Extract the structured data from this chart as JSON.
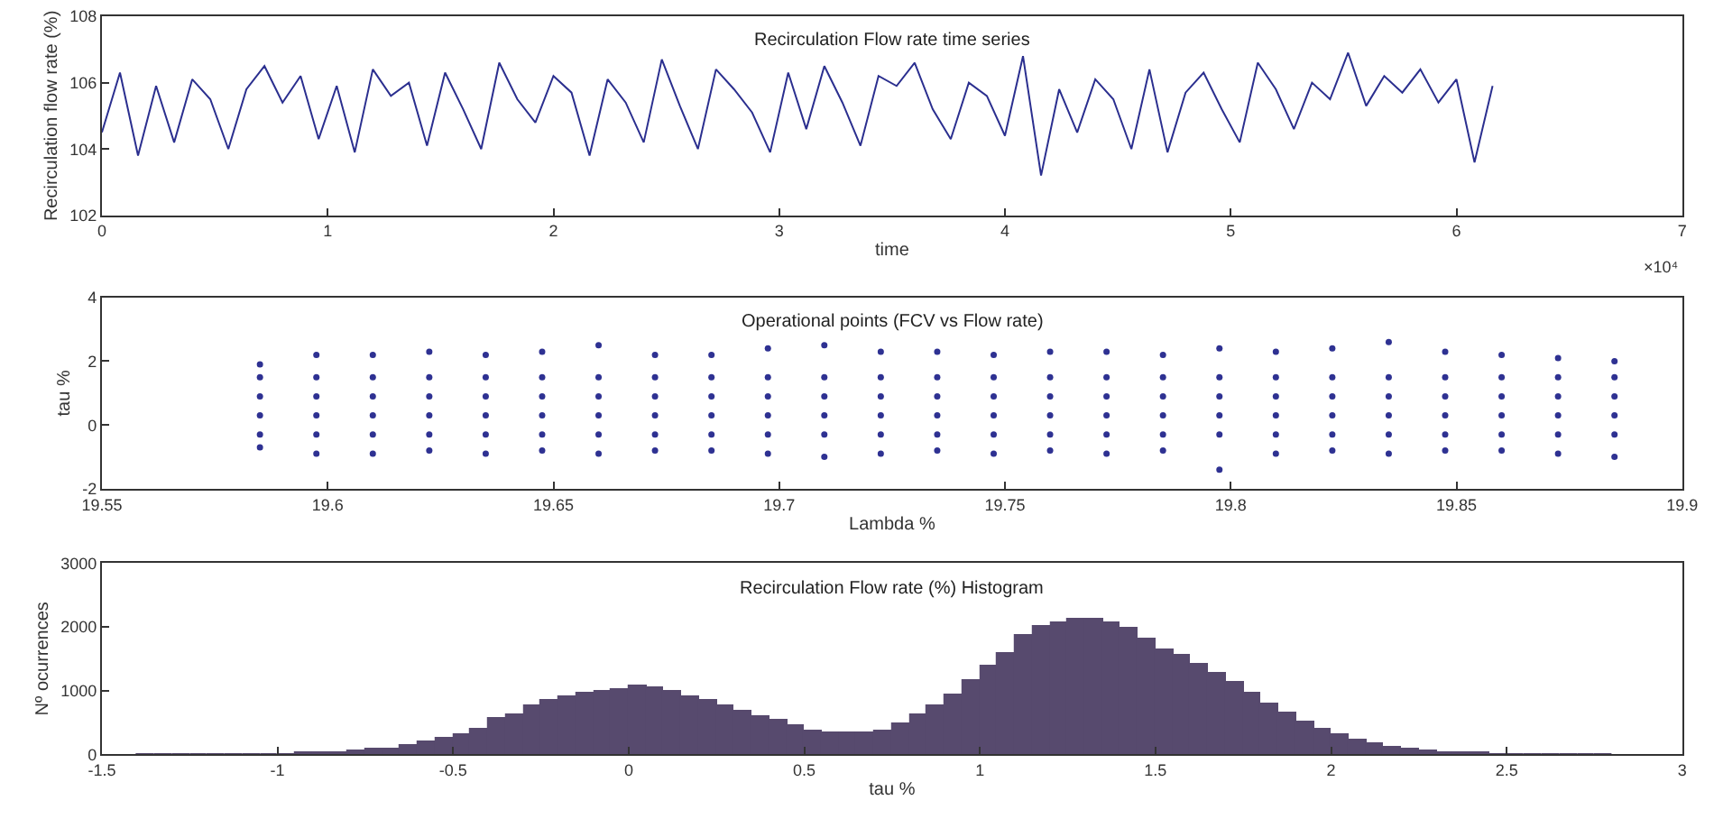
{
  "chart_data": [
    {
      "type": "line",
      "title": "Recirculation Flow rate time series",
      "xlabel": "time",
      "ylabel": "Recirculation flow rate (%)",
      "annotations": [
        "×10⁴"
      ],
      "xlim": [
        0,
        7
      ],
      "xticks": [
        0,
        1,
        2,
        3,
        4,
        5,
        6,
        7
      ],
      "ylim": [
        102,
        108
      ],
      "yticks": [
        102,
        104,
        106,
        108
      ],
      "grid": false,
      "marker": "none",
      "line_style": "solid",
      "series": [
        {
          "color": "#2b2f8f",
          "x": [
            0,
            0.08,
            0.16,
            0.24,
            0.32,
            0.4,
            0.48,
            0.56,
            0.64,
            0.72,
            0.8,
            0.88,
            0.96,
            1.04,
            1.12,
            1.2,
            1.28,
            1.36,
            1.44,
            1.52,
            1.6,
            1.68,
            1.76,
            1.84,
            1.92,
            2.0,
            2.08,
            2.16,
            2.24,
            2.32,
            2.4,
            2.48,
            2.56,
            2.64,
            2.72,
            2.8,
            2.88,
            2.96,
            3.04,
            3.12,
            3.2,
            3.28,
            3.36,
            3.44,
            3.52,
            3.6,
            3.68,
            3.76,
            3.84,
            3.92,
            4.0,
            4.08,
            4.16,
            4.24,
            4.32,
            4.4,
            4.48,
            4.56,
            4.64,
            4.72,
            4.8,
            4.88,
            4.96,
            5.04,
            5.12,
            5.2,
            5.28,
            5.36,
            5.44,
            5.52,
            5.6,
            5.68,
            5.76,
            5.84,
            5.92,
            6.0,
            6.08,
            6.16
          ],
          "values": [
            104.5,
            106.3,
            103.8,
            105.9,
            104.2,
            106.1,
            105.5,
            104.0,
            105.8,
            106.5,
            105.4,
            106.2,
            104.3,
            105.9,
            103.9,
            106.4,
            105.6,
            106.0,
            104.1,
            106.3,
            105.2,
            104.0,
            106.6,
            105.5,
            104.8,
            106.2,
            105.7,
            103.8,
            106.1,
            105.4,
            104.2,
            106.7,
            105.3,
            104.0,
            106.4,
            105.8,
            105.1,
            103.9,
            106.3,
            104.6,
            106.5,
            105.4,
            104.1,
            106.2,
            105.9,
            106.6,
            105.2,
            104.3,
            106.0,
            105.6,
            104.4,
            106.8,
            103.2,
            105.8,
            104.5,
            106.1,
            105.5,
            104.0,
            106.4,
            103.9,
            105.7,
            106.3,
            105.2,
            104.2,
            106.6,
            105.8,
            104.6,
            106.0,
            105.5,
            106.9,
            105.3,
            106.2,
            105.7,
            106.4,
            105.4,
            106.1,
            103.6,
            105.9
          ]
        }
      ]
    },
    {
      "type": "scatter",
      "title": "Operational points (FCV vs Flow rate)",
      "xlabel": "Lambda %",
      "ylabel": "tau %",
      "xlim": [
        19.55,
        19.9
      ],
      "xticks": [
        19.55,
        19.6,
        19.65,
        19.7,
        19.75,
        19.8,
        19.85,
        19.9
      ],
      "ylim": [
        -2,
        4
      ],
      "yticks": [
        -2,
        0,
        2,
        4
      ],
      "grid": false,
      "marker": "circle",
      "series": [
        {
          "color": "#2e3192",
          "x": [
            19.585,
            19.585,
            19.585,
            19.585,
            19.585,
            19.585,
            19.5975,
            19.5975,
            19.5975,
            19.5975,
            19.5975,
            19.5975,
            19.61,
            19.61,
            19.61,
            19.61,
            19.61,
            19.61,
            19.6225,
            19.6225,
            19.6225,
            19.6225,
            19.6225,
            19.6225,
            19.635,
            19.635,
            19.635,
            19.635,
            19.635,
            19.635,
            19.6475,
            19.6475,
            19.6475,
            19.6475,
            19.6475,
            19.6475,
            19.66,
            19.66,
            19.66,
            19.66,
            19.66,
            19.66,
            19.6725,
            19.6725,
            19.6725,
            19.6725,
            19.6725,
            19.6725,
            19.685,
            19.685,
            19.685,
            19.685,
            19.685,
            19.685,
            19.6975,
            19.6975,
            19.6975,
            19.6975,
            19.6975,
            19.6975,
            19.71,
            19.71,
            19.71,
            19.71,
            19.71,
            19.71,
            19.7225,
            19.7225,
            19.7225,
            19.7225,
            19.7225,
            19.7225,
            19.735,
            19.735,
            19.735,
            19.735,
            19.735,
            19.735,
            19.7475,
            19.7475,
            19.7475,
            19.7475,
            19.7475,
            19.7475,
            19.76,
            19.76,
            19.76,
            19.76,
            19.76,
            19.76,
            19.7725,
            19.7725,
            19.7725,
            19.7725,
            19.7725,
            19.7725,
            19.785,
            19.785,
            19.785,
            19.785,
            19.785,
            19.785,
            19.7975,
            19.7975,
            19.7975,
            19.7975,
            19.7975,
            19.7975,
            19.81,
            19.81,
            19.81,
            19.81,
            19.81,
            19.81,
            19.8225,
            19.8225,
            19.8225,
            19.8225,
            19.8225,
            19.8225,
            19.835,
            19.835,
            19.835,
            19.835,
            19.835,
            19.835,
            19.8475,
            19.8475,
            19.8475,
            19.8475,
            19.8475,
            19.8475,
            19.86,
            19.86,
            19.86,
            19.86,
            19.86,
            19.86,
            19.8725,
            19.8725,
            19.8725,
            19.8725,
            19.8725,
            19.8725,
            19.885,
            19.885,
            19.885,
            19.885,
            19.885,
            19.885
          ],
          "values": [
            -0.7,
            -0.3,
            0.3,
            0.9,
            1.5,
            1.9,
            -0.9,
            -0.3,
            0.3,
            0.9,
            1.5,
            2.2,
            -0.9,
            -0.3,
            0.3,
            0.9,
            1.5,
            2.2,
            -0.8,
            -0.3,
            0.3,
            0.9,
            1.5,
            2.3,
            -0.9,
            -0.3,
            0.3,
            0.9,
            1.5,
            2.2,
            -0.8,
            -0.3,
            0.3,
            0.9,
            1.5,
            2.3,
            -0.9,
            -0.3,
            0.3,
            0.9,
            1.5,
            2.5,
            -0.8,
            -0.3,
            0.3,
            0.9,
            1.5,
            2.2,
            -0.8,
            -0.3,
            0.3,
            0.9,
            1.5,
            2.2,
            -0.9,
            -0.3,
            0.3,
            0.9,
            1.5,
            2.4,
            -1.0,
            -0.3,
            0.3,
            0.9,
            1.5,
            2.5,
            -0.9,
            -0.3,
            0.3,
            0.9,
            1.5,
            2.3,
            -0.8,
            -0.3,
            0.3,
            0.9,
            1.5,
            2.3,
            -0.9,
            -0.3,
            0.3,
            0.9,
            1.5,
            2.2,
            -0.8,
            -0.3,
            0.3,
            0.9,
            1.5,
            2.3,
            -0.9,
            -0.3,
            0.3,
            0.9,
            1.5,
            2.3,
            -0.8,
            -0.3,
            0.3,
            0.9,
            1.5,
            2.2,
            -1.4,
            -0.3,
            0.3,
            0.9,
            1.5,
            2.4,
            -0.9,
            -0.3,
            0.3,
            0.9,
            1.5,
            2.3,
            -0.8,
            -0.3,
            0.3,
            0.9,
            1.5,
            2.4,
            -0.9,
            -0.3,
            0.3,
            0.9,
            1.5,
            2.6,
            -0.8,
            -0.3,
            0.3,
            0.9,
            1.5,
            2.3,
            -0.8,
            -0.3,
            0.3,
            0.9,
            1.5,
            2.2,
            -0.9,
            -0.3,
            0.3,
            0.9,
            1.5,
            2.1,
            -1.0,
            -0.3,
            0.3,
            0.9,
            1.5,
            2.0
          ]
        }
      ]
    },
    {
      "type": "histogram",
      "title": "Recirculation Flow rate (%) Histogram",
      "xlabel": "tau %",
      "ylabel": "Nº ocurrences",
      "xlim": [
        -1.5,
        3
      ],
      "xticks": [
        -1.5,
        -1,
        -0.5,
        0,
        0.5,
        1,
        1.5,
        2,
        2.5,
        3
      ],
      "ylim": [
        0,
        3000
      ],
      "yticks": [
        0,
        1000,
        2000,
        3000
      ],
      "grid": false,
      "color": "#574a6e",
      "bins": [
        -1.4,
        -1.35,
        -1.3,
        -1.25,
        -1.2,
        -1.15,
        -1.1,
        -1.05,
        -1.0,
        -0.95,
        -0.9,
        -0.85,
        -0.8,
        -0.75,
        -0.7,
        -0.65,
        -0.6,
        -0.55,
        -0.5,
        -0.45,
        -0.4,
        -0.35,
        -0.3,
        -0.25,
        -0.2,
        -0.15,
        -0.1,
        -0.05,
        0.0,
        0.05,
        0.1,
        0.15,
        0.2,
        0.25,
        0.3,
        0.35,
        0.4,
        0.45,
        0.5,
        0.55,
        0.6,
        0.65,
        0.7,
        0.75,
        0.8,
        0.85,
        0.9,
        0.95,
        1.0,
        1.05,
        1.1,
        1.15,
        1.2,
        1.25,
        1.3,
        1.35,
        1.4,
        1.45,
        1.5,
        1.55,
        1.6,
        1.65,
        1.7,
        1.75,
        1.8,
        1.85,
        1.9,
        1.95,
        2.0,
        2.05,
        2.1,
        2.15,
        2.2,
        2.25,
        2.3,
        2.35,
        2.4,
        2.45,
        2.5,
        2.55,
        2.6,
        2.65,
        2.7,
        2.75,
        2.8
      ],
      "values": [
        0,
        0,
        0,
        0,
        0,
        10,
        10,
        10,
        10,
        20,
        30,
        40,
        60,
        80,
        100,
        140,
        190,
        250,
        310,
        400,
        560,
        620,
        780,
        840,
        900,
        950,
        1000,
        1030,
        1070,
        1060,
        980,
        920,
        840,
        760,
        680,
        590,
        540,
        450,
        360,
        350,
        340,
        340,
        380,
        480,
        620,
        760,
        930,
        1150,
        1400,
        1600,
        1880,
        2000,
        2080,
        2130,
        2130,
        2080,
        1980,
        1800,
        1650,
        1550,
        1420,
        1280,
        1130,
        960,
        800,
        650,
        520,
        400,
        300,
        220,
        160,
        110,
        80,
        60,
        40,
        30,
        20,
        10,
        10,
        10,
        0,
        0,
        0,
        0
      ]
    }
  ]
}
